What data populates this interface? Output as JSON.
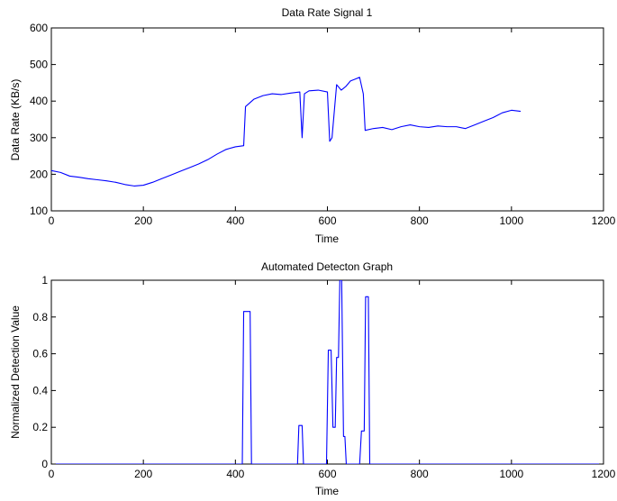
{
  "figure": {
    "background": "#ffffff",
    "line_color": "#0000ff",
    "axes_color": "#000000"
  },
  "chart_data": [
    {
      "type": "line",
      "title": "Data Rate Signal 1",
      "xlabel": "Time",
      "ylabel": "Data Rate (KB/s)",
      "xlim": [
        0,
        1200
      ],
      "ylim": [
        100,
        600
      ],
      "xticks": [
        0,
        200,
        400,
        600,
        800,
        1000,
        1200
      ],
      "yticks": [
        100,
        200,
        300,
        400,
        500,
        600
      ],
      "grid": false,
      "line_color": "#0000ff",
      "series": [
        {
          "x": [
            0,
            20,
            40,
            60,
            80,
            100,
            120,
            140,
            160,
            180,
            200,
            220,
            240,
            260,
            280,
            300,
            320,
            340,
            360,
            380,
            400,
            418,
            422,
            440,
            460,
            480,
            500,
            520,
            540,
            545,
            550,
            560,
            580,
            600,
            605,
            610,
            620,
            630,
            640,
            650,
            660,
            670,
            678,
            682,
            700,
            720,
            740,
            760,
            780,
            800,
            820,
            840,
            860,
            880,
            900,
            920,
            940,
            960,
            980,
            1000,
            1020
          ],
          "y": [
            210,
            205,
            195,
            192,
            188,
            185,
            182,
            178,
            172,
            168,
            170,
            178,
            188,
            198,
            208,
            218,
            228,
            240,
            255,
            268,
            275,
            278,
            385,
            405,
            415,
            420,
            418,
            422,
            425,
            300,
            420,
            428,
            430,
            425,
            290,
            300,
            445,
            430,
            440,
            455,
            460,
            465,
            420,
            320,
            325,
            328,
            322,
            330,
            335,
            330,
            328,
            332,
            330,
            330,
            325,
            335,
            345,
            355,
            368,
            375,
            372
          ]
        }
      ]
    },
    {
      "type": "line",
      "title": "Automated Detecton Graph",
      "xlabel": "Time",
      "ylabel": "Normalized Detection Value",
      "xlim": [
        0,
        1200
      ],
      "ylim": [
        0,
        1
      ],
      "xticks": [
        0,
        200,
        400,
        600,
        800,
        1000,
        1200
      ],
      "yticks": [
        0,
        0.2,
        0.4,
        0.6,
        0.8,
        1
      ],
      "grid": false,
      "line_color": "#0000ff",
      "series": [
        {
          "x": [
            0,
            415,
            418,
            432,
            435,
            535,
            538,
            545,
            548,
            598,
            602,
            608,
            612,
            617,
            620,
            624,
            627,
            631,
            635,
            638,
            641,
            670,
            674,
            680,
            683,
            689,
            692,
            1200
          ],
          "y": [
            0,
            0,
            0.83,
            0.83,
            0,
            0,
            0.21,
            0.21,
            0,
            0,
            0.62,
            0.62,
            0.2,
            0.2,
            0.58,
            0.58,
            1.0,
            1.0,
            0.15,
            0.15,
            0,
            0,
            0.18,
            0.18,
            0.91,
            0.91,
            0,
            0
          ]
        }
      ]
    }
  ]
}
